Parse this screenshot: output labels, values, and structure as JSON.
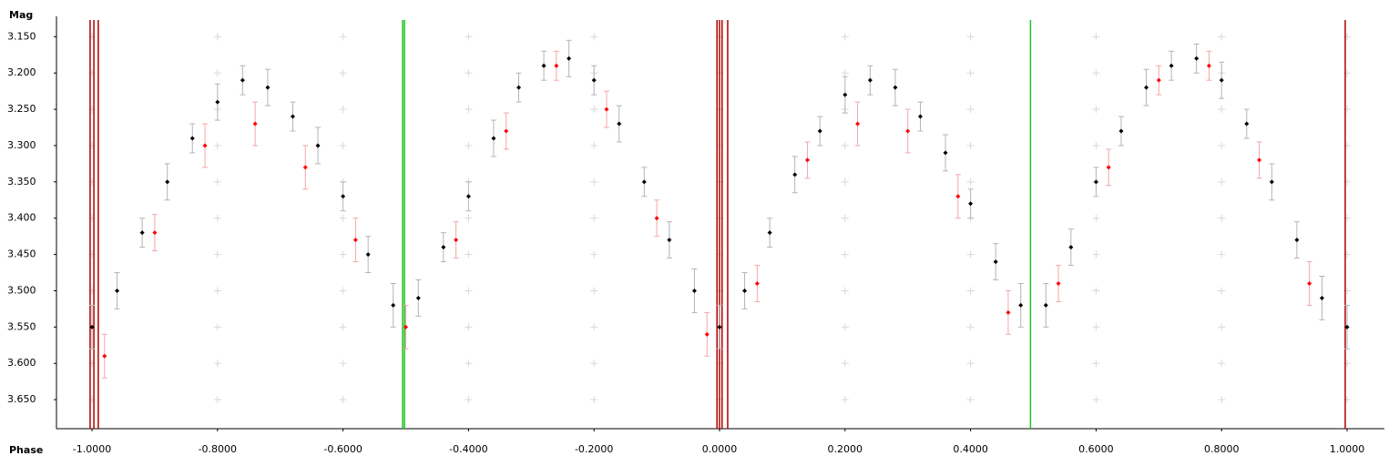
{
  "chart_data": {
    "type": "scatter",
    "y_label": "Mag",
    "x_label": "Phase",
    "xlim": [
      -1.0566,
      1.0595
    ],
    "ylim": [
      3.69,
      3.122
    ],
    "xticks": [
      {
        "value": -1,
        "label": "-1.0000"
      },
      {
        "value": -0.8,
        "label": "-0.8000"
      },
      {
        "value": -0.6,
        "label": "-0.6000"
      },
      {
        "value": -0.4,
        "label": "-0.4000"
      },
      {
        "value": -0.2,
        "label": "-0.2000"
      },
      {
        "value": 0,
        "label": "0.0000"
      },
      {
        "value": 0.2,
        "label": "0.2000"
      },
      {
        "value": 0.4,
        "label": "0.4000"
      },
      {
        "value": 0.6,
        "label": "0.6000"
      },
      {
        "value": 0.8,
        "label": "0.8000"
      },
      {
        "value": 1,
        "label": "1.0000"
      }
    ],
    "yticks": [
      {
        "value": 3.15,
        "label": "3.150"
      },
      {
        "value": 3.2,
        "label": "3.200"
      },
      {
        "value": 3.25,
        "label": "3.250"
      },
      {
        "value": 3.3,
        "label": "3.300"
      },
      {
        "value": 3.35,
        "label": "3.350"
      },
      {
        "value": 3.4,
        "label": "3.400"
      },
      {
        "value": 3.45,
        "label": "3.450"
      },
      {
        "value": 3.5,
        "label": "3.500"
      },
      {
        "value": 3.55,
        "label": "3.550"
      },
      {
        "value": 3.6,
        "label": "3.600"
      },
      {
        "value": 3.65,
        "label": "3.650"
      }
    ],
    "grid": "crosses",
    "grid_color": "#d8d8d8",
    "vlines": [
      {
        "x": -1.003,
        "color": "#b00000"
      },
      {
        "x": -0.997,
        "color": "#b00000"
      },
      {
        "x": -0.99,
        "color": "#b00000"
      },
      {
        "x": -0.505,
        "color": "#20c020"
      },
      {
        "x": -0.502,
        "color": "#20c020"
      },
      {
        "x": -0.004,
        "color": "#b00000"
      },
      {
        "x": 0.0,
        "color": "#b00000"
      },
      {
        "x": 0.004,
        "color": "#b00000"
      },
      {
        "x": 0.013,
        "color": "#b00000"
      },
      {
        "x": 0.4955,
        "color": "#20c020"
      },
      {
        "x": 0.997,
        "color": "#b00000"
      }
    ],
    "series": [
      {
        "color": "#000000",
        "error_color": "#b4b4b4",
        "x": [
          -1.0,
          -0.96,
          -0.92,
          -0.88,
          -0.84,
          -0.8,
          -0.76,
          -0.72,
          -0.68,
          -0.64,
          -0.6,
          -0.56,
          -0.52,
          -0.48,
          -0.44,
          -0.4,
          -0.36,
          -0.32,
          -0.28,
          -0.24,
          -0.2,
          -0.16,
          -0.12,
          -0.08,
          -0.04,
          0.0,
          0.04,
          0.08,
          0.12,
          0.16,
          0.2,
          0.24,
          0.28,
          0.32,
          0.36,
          0.4,
          0.44,
          0.48,
          0.52,
          0.56,
          0.6,
          0.64,
          0.68,
          0.72,
          0.76,
          0.8,
          0.84,
          0.88,
          0.92,
          0.96,
          1.0
        ],
        "values": [
          3.55,
          3.5,
          3.42,
          3.35,
          3.29,
          3.24,
          3.21,
          3.22,
          3.26,
          3.3,
          3.37,
          3.45,
          3.52,
          3.51,
          3.44,
          3.37,
          3.29,
          3.22,
          3.19,
          3.18,
          3.21,
          3.27,
          3.35,
          3.43,
          3.5,
          3.55,
          3.5,
          3.42,
          3.34,
          3.28,
          3.23,
          3.21,
          3.22,
          3.26,
          3.31,
          3.38,
          3.46,
          3.52,
          3.52,
          3.44,
          3.35,
          3.28,
          3.22,
          3.19,
          3.18,
          3.21,
          3.27,
          3.35,
          3.43,
          3.51,
          3.55
        ],
        "errors": [
          0.03,
          0.025,
          0.02,
          0.025,
          0.02,
          0.025,
          0.02,
          0.025,
          0.02,
          0.025,
          0.02,
          0.025,
          0.03,
          0.025,
          0.02,
          0.02,
          0.025,
          0.02,
          0.02,
          0.025,
          0.02,
          0.025,
          0.02,
          0.025,
          0.03,
          0.03,
          0.025,
          0.02,
          0.025,
          0.02,
          0.025,
          0.02,
          0.025,
          0.02,
          0.025,
          0.02,
          0.025,
          0.03,
          0.03,
          0.025,
          0.02,
          0.02,
          0.025,
          0.02,
          0.02,
          0.025,
          0.02,
          0.025,
          0.025,
          0.03,
          0.03
        ]
      },
      {
        "color": "#ff0000",
        "error_color": "#f4a6a6",
        "x": [
          -0.98,
          -0.9,
          -0.82,
          -0.74,
          -0.66,
          -0.58,
          -0.5,
          -0.42,
          -0.34,
          -0.26,
          -0.18,
          -0.1,
          -0.02,
          0.06,
          0.14,
          0.22,
          0.3,
          0.38,
          0.46,
          0.54,
          0.62,
          0.7,
          0.78,
          0.86,
          0.94
        ],
        "values": [
          3.59,
          3.42,
          3.3,
          3.27,
          3.33,
          3.43,
          3.55,
          3.43,
          3.28,
          3.19,
          3.25,
          3.4,
          3.56,
          3.49,
          3.32,
          3.27,
          3.28,
          3.37,
          3.53,
          3.49,
          3.33,
          3.21,
          3.19,
          3.32,
          3.49
        ],
        "errors": [
          0.03,
          0.025,
          0.03,
          0.03,
          0.03,
          0.03,
          0.03,
          0.025,
          0.025,
          0.02,
          0.025,
          0.025,
          0.03,
          0.025,
          0.025,
          0.03,
          0.03,
          0.03,
          0.03,
          0.025,
          0.025,
          0.02,
          0.02,
          0.025,
          0.03
        ]
      }
    ]
  }
}
